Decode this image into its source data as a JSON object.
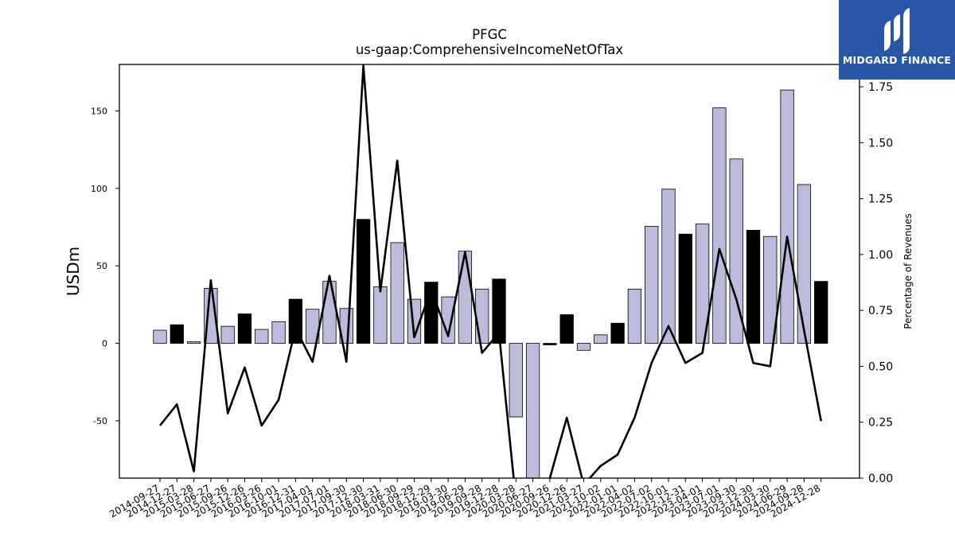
{
  "chart_data": {
    "type": "bar",
    "title": "PFGC",
    "subtitle": "us-gaap:ComprehensiveIncomeNetOfTax",
    "ylabel": "USDm",
    "y2label": "Percentage of Revenues",
    "ylim": [
      -87,
      180
    ],
    "y2lim": [
      0.0,
      1.85
    ],
    "yticks": [
      -50,
      0,
      50,
      100,
      150
    ],
    "y2ticks": [
      0.0,
      0.25,
      0.5,
      0.75,
      1.0,
      1.25,
      1.5,
      1.75
    ],
    "y2tick_labels": [
      "0.00",
      "0.25",
      "0.50",
      "0.75",
      "1.00",
      "1.25",
      "1.50",
      "1.75"
    ],
    "grid": false,
    "categories": [
      "2014-09-27",
      "2014-12-27",
      "2015-03-28",
      "2015-06-27",
      "2015-09-26",
      "2015-12-26",
      "2016-03-26",
      "2016-10-01",
      "2016-12-31",
      "2017-04-01",
      "2017-07-01",
      "2017-09-30",
      "2017-12-30",
      "2018-03-31",
      "2018-06-30",
      "2018-09-29",
      "2018-12-29",
      "2019-03-30",
      "2019-06-29",
      "2019-09-28",
      "2019-12-28",
      "2020-03-28",
      "2020-06-27",
      "2020-09-26",
      "2020-12-26",
      "2021-03-27",
      "2021-10-02",
      "2022-01-01",
      "2022-04-02",
      "2022-07-02",
      "2022-10-01",
      "2022-12-31",
      "2023-04-01",
      "2023-07-01",
      "2023-09-30",
      "2023-12-30",
      "2024-03-30",
      "2024-06-29",
      "2024-09-28",
      "2024-12-28"
    ],
    "series": [
      {
        "values": [
          8.5,
          12,
          1,
          35.5,
          11,
          19,
          9,
          14,
          28.5,
          22,
          40,
          22.5,
          80,
          36.5,
          65,
          28.5,
          39.5,
          30,
          59.5,
          35,
          41.5,
          -47.5,
          -87,
          -1,
          18.5,
          -4.5,
          5.5,
          13,
          35,
          75.5,
          99.5,
          70.5,
          77,
          152,
          119,
          73,
          69,
          163.5,
          102.5,
          40
        ],
        "highlight": [
          false,
          true,
          false,
          false,
          false,
          true,
          false,
          false,
          true,
          false,
          false,
          false,
          true,
          false,
          false,
          false,
          true,
          false,
          false,
          false,
          true,
          false,
          false,
          true,
          true,
          false,
          false,
          true,
          false,
          false,
          false,
          true,
          false,
          false,
          false,
          true,
          false,
          false,
          false,
          true
        ]
      },
      {
        "values": [
          0.235,
          0.33,
          0.03,
          0.885,
          0.29,
          0.495,
          0.235,
          0.35,
          0.67,
          0.52,
          0.905,
          0.52,
          1.845,
          0.835,
          1.42,
          0.63,
          0.845,
          0.635,
          1.01,
          0.56,
          0.65,
          -0.1,
          -0.18,
          0.0,
          0.27,
          -0.03,
          0.055,
          0.105,
          0.27,
          0.515,
          0.68,
          0.515,
          0.56,
          1.025,
          0.8,
          0.515,
          0.5,
          1.08,
          0.66,
          0.255
        ]
      }
    ],
    "colors": {
      "bar": "#bcbbdb",
      "bar_highlight": "#000000",
      "edge": "#000000",
      "line": "#000000"
    }
  },
  "logo": {
    "text": "MIDGARD FINANCE",
    "background": "#2a56a6",
    "icon": "midgard-logo-icon"
  }
}
